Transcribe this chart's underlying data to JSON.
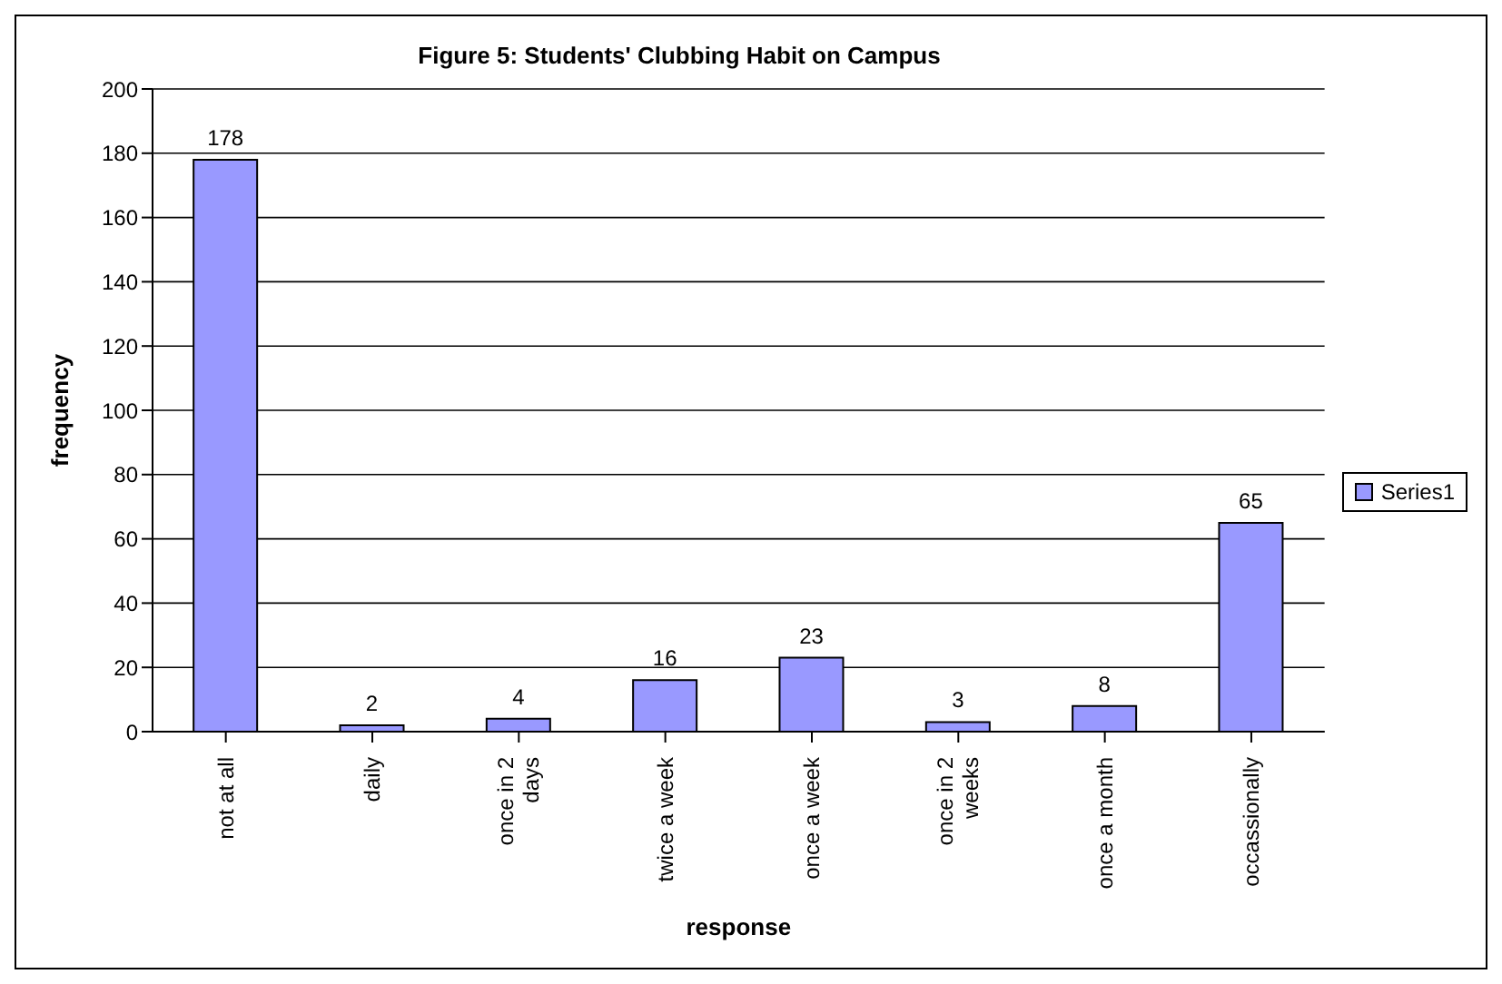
{
  "chart_data": {
    "type": "bar",
    "title": "Figure 5: Students' Clubbing Habit on Campus",
    "xlabel": "response",
    "ylabel": "frequency",
    "categories": [
      "not at all",
      "daily",
      "once in 2 days",
      "twice a week",
      "once a week",
      "once in 2 weeks",
      "once a month",
      "occassionally"
    ],
    "series": [
      {
        "name": "Series1",
        "color": "#9999ff",
        "values": [
          178,
          2,
          4,
          16,
          23,
          3,
          8,
          65
        ]
      }
    ],
    "ylim": [
      0,
      200
    ],
    "yticks": [
      0,
      20,
      40,
      60,
      80,
      100,
      120,
      140,
      160,
      180,
      200
    ],
    "grid": "y",
    "legend": "right",
    "data_labels": true
  }
}
